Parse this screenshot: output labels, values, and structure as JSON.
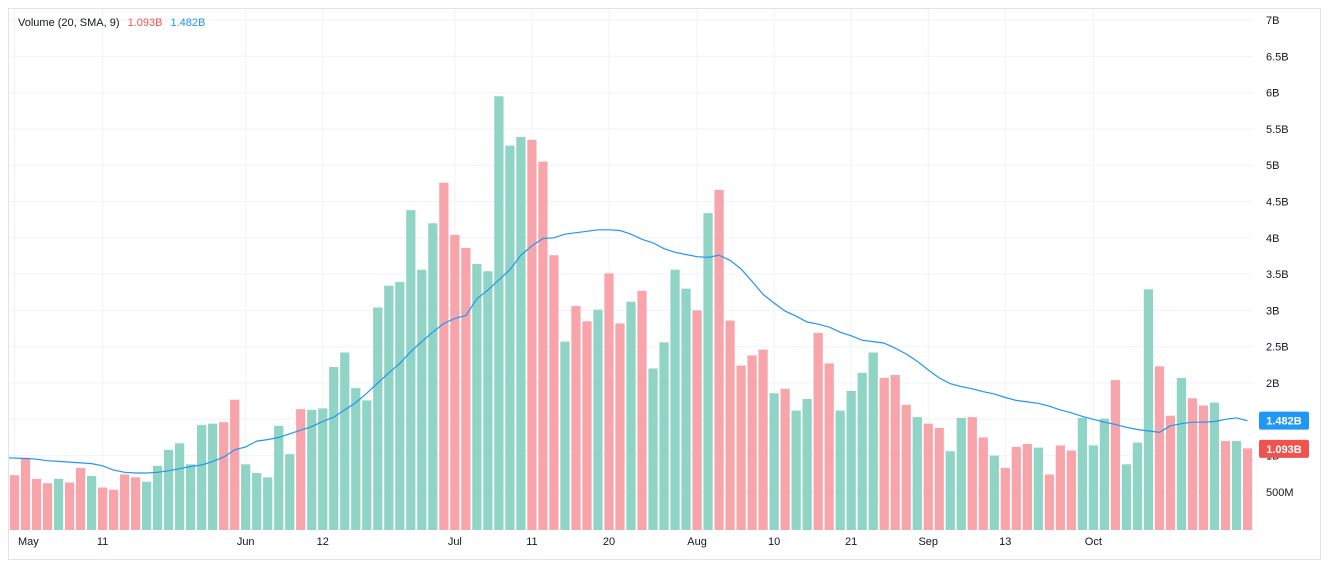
{
  "legend": {
    "name": "Volume (20, SMA, 9)",
    "volume_value": "1.093B",
    "sma_value": "1.482B"
  },
  "colors": {
    "up": "#8fd4c4",
    "down": "#f7a5aa",
    "sma": "#2196f3",
    "grid": "#f0f3fa",
    "badge_sma": "#2196f3",
    "badge_volume": "#ef5350"
  },
  "chart_data": {
    "type": "bar",
    "series": [
      {
        "name": "Volume",
        "values": [
          0.73,
          0.97,
          0.68,
          0.62,
          0.68,
          0.63,
          0.83,
          0.72,
          0.56,
          0.53,
          0.74,
          0.7,
          0.64,
          0.86,
          1.08,
          1.17,
          0.88,
          1.42,
          1.44,
          1.46,
          1.77,
          0.88,
          0.76,
          0.7,
          1.41,
          1.02,
          1.64,
          1.63,
          1.65,
          2.22,
          2.42,
          1.93,
          1.76,
          3.04,
          3.34,
          3.39,
          4.38,
          3.56,
          4.2,
          4.76,
          4.04,
          3.86,
          3.64,
          3.54,
          5.95,
          5.27,
          5.39,
          5.35,
          5.05,
          3.76,
          2.57,
          3.06,
          2.85,
          3.01,
          3.51,
          2.82,
          3.12,
          3.27,
          2.2,
          2.56,
          3.56,
          3.3,
          3.0,
          4.34,
          4.66,
          2.86,
          2.24,
          2.38,
          2.46,
          1.86,
          1.92,
          1.62,
          1.78,
          2.69,
          2.27,
          1.62,
          1.89,
          2.14,
          2.42,
          2.07,
          2.11,
          1.7,
          1.53,
          1.44,
          1.38,
          1.06,
          1.52,
          1.53,
          1.25,
          1.0,
          0.83,
          1.12,
          1.16,
          1.11,
          0.74,
          1.14,
          1.07,
          1.52,
          1.14,
          1.51,
          2.04,
          0.88,
          1.18,
          3.29,
          2.23,
          1.55,
          2.07,
          1.79,
          1.69,
          1.73,
          1.2,
          1.2,
          1.1
        ],
        "direction": [
          "d",
          "d",
          "d",
          "d",
          "u",
          "d",
          "d",
          "u",
          "d",
          "d",
          "d",
          "d",
          "u",
          "u",
          "u",
          "u",
          "u",
          "u",
          "u",
          "d",
          "d",
          "u",
          "u",
          "u",
          "u",
          "u",
          "d",
          "u",
          "u",
          "u",
          "u",
          "u",
          "u",
          "u",
          "u",
          "u",
          "u",
          "u",
          "u",
          "d",
          "d",
          "d",
          "u",
          "u",
          "u",
          "u",
          "u",
          "d",
          "d",
          "d",
          "u",
          "d",
          "d",
          "u",
          "d",
          "d",
          "u",
          "d",
          "u",
          "u",
          "u",
          "u",
          "d",
          "u",
          "d",
          "d",
          "d",
          "d",
          "d",
          "u",
          "d",
          "u",
          "u",
          "d",
          "d",
          "u",
          "u",
          "u",
          "u",
          "d",
          "d",
          "d",
          "u",
          "d",
          "d",
          "u",
          "u",
          "d",
          "d",
          "u",
          "d",
          "d",
          "d",
          "u",
          "d",
          "d",
          "d",
          "u",
          "u",
          "u",
          "d",
          "u",
          "u",
          "u",
          "d",
          "d",
          "u",
          "d",
          "d",
          "u",
          "d",
          "u",
          "d"
        ],
        "up_direction": "u"
      },
      {
        "name": "SMA",
        "values": [
          0.97,
          0.96,
          0.95,
          0.93,
          0.92,
          0.91,
          0.9,
          0.89,
          0.86,
          0.8,
          0.77,
          0.76,
          0.76,
          0.77,
          0.79,
          0.82,
          0.85,
          0.87,
          0.92,
          0.98,
          1.08,
          1.12,
          1.2,
          1.22,
          1.25,
          1.3,
          1.35,
          1.4,
          1.47,
          1.53,
          1.63,
          1.73,
          1.86,
          2.0,
          2.14,
          2.27,
          2.43,
          2.57,
          2.7,
          2.82,
          2.89,
          2.93,
          3.16,
          3.28,
          3.42,
          3.56,
          3.76,
          3.89,
          3.99,
          4.0,
          4.05,
          4.07,
          4.09,
          4.11,
          4.11,
          4.1,
          4.05,
          3.98,
          3.93,
          3.85,
          3.8,
          3.77,
          3.74,
          3.73,
          3.76,
          3.69,
          3.57,
          3.4,
          3.22,
          3.1,
          2.99,
          2.92,
          2.84,
          2.81,
          2.77,
          2.7,
          2.65,
          2.59,
          2.57,
          2.55,
          2.48,
          2.4,
          2.3,
          2.18,
          2.07,
          1.99,
          1.95,
          1.92,
          1.88,
          1.85,
          1.8,
          1.76,
          1.74,
          1.72,
          1.68,
          1.63,
          1.59,
          1.54,
          1.5,
          1.46,
          1.43,
          1.39,
          1.36,
          1.34,
          1.32,
          1.41,
          1.44,
          1.46,
          1.46,
          1.47,
          1.5,
          1.52,
          1.48
        ]
      }
    ],
    "x_ticks": [
      {
        "label": "May",
        "bar": 0
      },
      {
        "label": "11",
        "bar": 8
      },
      {
        "label": "Jun",
        "bar": 21
      },
      {
        "label": "12",
        "bar": 28
      },
      {
        "label": "Jul",
        "bar": 40
      },
      {
        "label": "11",
        "bar": 47
      },
      {
        "label": "20",
        "bar": 54
      },
      {
        "label": "Aug",
        "bar": 62
      },
      {
        "label": "10",
        "bar": 69
      },
      {
        "label": "21",
        "bar": 76
      },
      {
        "label": "Sep",
        "bar": 83
      },
      {
        "label": "13",
        "bar": 90
      },
      {
        "label": "Oct",
        "bar": 98
      }
    ],
    "y_ticks": [
      {
        "value": 0.5,
        "label": "500M"
      },
      {
        "value": 1.0,
        "label": "1B"
      },
      {
        "value": 1.5,
        "label": "1.5B"
      },
      {
        "value": 2.0,
        "label": "2B"
      },
      {
        "value": 2.5,
        "label": "2.5B"
      },
      {
        "value": 3.0,
        "label": "3B"
      },
      {
        "value": 3.5,
        "label": "3.5B"
      },
      {
        "value": 4.0,
        "label": "4B"
      },
      {
        "value": 4.5,
        "label": "4.5B"
      },
      {
        "value": 5.0,
        "label": "5B"
      },
      {
        "value": 5.5,
        "label": "5.5B"
      },
      {
        "value": 6.0,
        "label": "6B"
      },
      {
        "value": 6.5,
        "label": "6.5B"
      },
      {
        "value": 7.0,
        "label": "7B"
      }
    ],
    "ylim": [
      0,
      7.2
    ],
    "y_unit": "billions",
    "last_labels": [
      {
        "series": "SMA",
        "value": 1.482,
        "label": "1.482B",
        "color": "#2196f3"
      },
      {
        "series": "Volume",
        "value": 1.093,
        "label": "1.093B",
        "color": "#ef5350"
      }
    ],
    "grid": true,
    "axis_position": "right"
  }
}
